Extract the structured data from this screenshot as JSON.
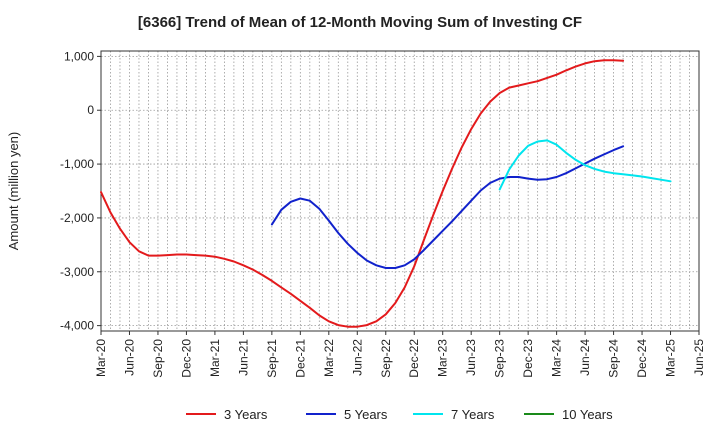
{
  "chart_data": {
    "type": "line",
    "title": "[6366]  Trend of Mean of 12-Month Moving Sum of Investing CF",
    "xlabel": "",
    "ylabel": "Amount (million yen)",
    "ylim": [
      -4100,
      1100
    ],
    "yticks": [
      1000,
      0,
      -1000,
      -2000,
      -3000,
      -4000
    ],
    "ytick_labels": [
      "1,000",
      "0",
      "-1,000",
      "-2,000",
      "-3,000",
      "-4,000"
    ],
    "xticks": [
      "2020-03",
      "2020-06",
      "2020-09",
      "2020-12",
      "2021-03",
      "2021-06",
      "2021-09",
      "2021-12",
      "2022-03",
      "2022-06",
      "2022-09",
      "2022-12",
      "2023-03",
      "2023-06",
      "2023-09",
      "2023-12",
      "2024-03",
      "2024-06",
      "2024-09",
      "2024-12",
      "2025-03",
      "2025-06"
    ],
    "xtick_labels": [
      "Mar-20",
      "Jun-20",
      "Sep-20",
      "Dec-20",
      "Mar-21",
      "Jun-21",
      "Sep-21",
      "Dec-21",
      "Mar-22",
      "Jun-22",
      "Sep-22",
      "Dec-22",
      "Mar-23",
      "Jun-23",
      "Sep-23",
      "Dec-23",
      "Mar-24",
      "Jun-24",
      "Sep-24",
      "Dec-24",
      "Mar-25",
      "Jun-25"
    ],
    "grid": true,
    "legend_position": "bottom",
    "series": [
      {
        "name": "3 Years",
        "color": "#e31a1c",
        "points": [
          [
            "2020-03",
            -1520
          ],
          [
            "2020-04",
            -1900
          ],
          [
            "2020-05",
            -2200
          ],
          [
            "2020-06",
            -2450
          ],
          [
            "2020-07",
            -2620
          ],
          [
            "2020-08",
            -2700
          ],
          [
            "2020-09",
            -2700
          ],
          [
            "2020-10",
            -2690
          ],
          [
            "2020-11",
            -2680
          ],
          [
            "2020-12",
            -2680
          ],
          [
            "2021-01",
            -2690
          ],
          [
            "2021-02",
            -2700
          ],
          [
            "2021-03",
            -2720
          ],
          [
            "2021-04",
            -2760
          ],
          [
            "2021-05",
            -2810
          ],
          [
            "2021-06",
            -2880
          ],
          [
            "2021-07",
            -2960
          ],
          [
            "2021-08",
            -3060
          ],
          [
            "2021-09",
            -3170
          ],
          [
            "2021-10",
            -3290
          ],
          [
            "2021-11",
            -3410
          ],
          [
            "2021-12",
            -3540
          ],
          [
            "2022-01",
            -3670
          ],
          [
            "2022-02",
            -3810
          ],
          [
            "2022-03",
            -3920
          ],
          [
            "2022-04",
            -3990
          ],
          [
            "2022-05",
            -4020
          ],
          [
            "2022-06",
            -4020
          ],
          [
            "2022-07",
            -3990
          ],
          [
            "2022-08",
            -3920
          ],
          [
            "2022-09",
            -3790
          ],
          [
            "2022-10",
            -3580
          ],
          [
            "2022-11",
            -3290
          ],
          [
            "2022-12",
            -2900
          ],
          [
            "2023-01",
            -2420
          ],
          [
            "2023-02",
            -1950
          ],
          [
            "2023-03",
            -1500
          ],
          [
            "2023-04",
            -1080
          ],
          [
            "2023-05",
            -690
          ],
          [
            "2023-06",
            -350
          ],
          [
            "2023-07",
            -60
          ],
          [
            "2023-08",
            160
          ],
          [
            "2023-09",
            320
          ],
          [
            "2023-10",
            420
          ],
          [
            "2023-11",
            460
          ],
          [
            "2023-12",
            500
          ],
          [
            "2024-01",
            540
          ],
          [
            "2024-02",
            600
          ],
          [
            "2024-03",
            660
          ],
          [
            "2024-04",
            740
          ],
          [
            "2024-05",
            810
          ],
          [
            "2024-06",
            870
          ],
          [
            "2024-07",
            910
          ],
          [
            "2024-08",
            930
          ],
          [
            "2024-09",
            930
          ],
          [
            "2024-10",
            920
          ]
        ]
      },
      {
        "name": "5 Years",
        "color": "#1122cc",
        "points": [
          [
            "2021-09",
            -2120
          ],
          [
            "2021-10",
            -1850
          ],
          [
            "2021-11",
            -1700
          ],
          [
            "2021-12",
            -1640
          ],
          [
            "2022-01",
            -1680
          ],
          [
            "2022-02",
            -1830
          ],
          [
            "2022-03",
            -2050
          ],
          [
            "2022-04",
            -2280
          ],
          [
            "2022-05",
            -2480
          ],
          [
            "2022-06",
            -2650
          ],
          [
            "2022-07",
            -2790
          ],
          [
            "2022-08",
            -2880
          ],
          [
            "2022-09",
            -2930
          ],
          [
            "2022-10",
            -2930
          ],
          [
            "2022-11",
            -2880
          ],
          [
            "2022-12",
            -2770
          ],
          [
            "2023-01",
            -2600
          ],
          [
            "2023-02",
            -2420
          ],
          [
            "2023-03",
            -2240
          ],
          [
            "2023-04",
            -2060
          ],
          [
            "2023-05",
            -1870
          ],
          [
            "2023-06",
            -1680
          ],
          [
            "2023-07",
            -1490
          ],
          [
            "2023-08",
            -1350
          ],
          [
            "2023-09",
            -1270
          ],
          [
            "2023-10",
            -1240
          ],
          [
            "2023-11",
            -1240
          ],
          [
            "2023-12",
            -1270
          ],
          [
            "2024-01",
            -1290
          ],
          [
            "2024-02",
            -1280
          ],
          [
            "2024-03",
            -1240
          ],
          [
            "2024-04",
            -1170
          ],
          [
            "2024-05",
            -1080
          ],
          [
            "2024-06",
            -990
          ],
          [
            "2024-07",
            -900
          ],
          [
            "2024-08",
            -820
          ],
          [
            "2024-09",
            -740
          ],
          [
            "2024-10",
            -670
          ]
        ]
      },
      {
        "name": "7 Years",
        "color": "#00e5ee",
        "points": [
          [
            "2023-09",
            -1470
          ],
          [
            "2023-10",
            -1100
          ],
          [
            "2023-11",
            -840
          ],
          [
            "2023-12",
            -660
          ],
          [
            "2024-01",
            -580
          ],
          [
            "2024-02",
            -560
          ],
          [
            "2024-03",
            -640
          ],
          [
            "2024-04",
            -790
          ],
          [
            "2024-05",
            -920
          ],
          [
            "2024-06",
            -1020
          ],
          [
            "2024-07",
            -1090
          ],
          [
            "2024-08",
            -1140
          ],
          [
            "2024-09",
            -1170
          ],
          [
            "2024-10",
            -1190
          ],
          [
            "2024-11",
            -1210
          ],
          [
            "2024-12",
            -1230
          ],
          [
            "2025-01",
            -1260
          ],
          [
            "2025-02",
            -1290
          ],
          [
            "2025-03",
            -1320
          ]
        ]
      },
      {
        "name": "10 Years",
        "color": "#1a8a1a",
        "points": []
      }
    ]
  }
}
